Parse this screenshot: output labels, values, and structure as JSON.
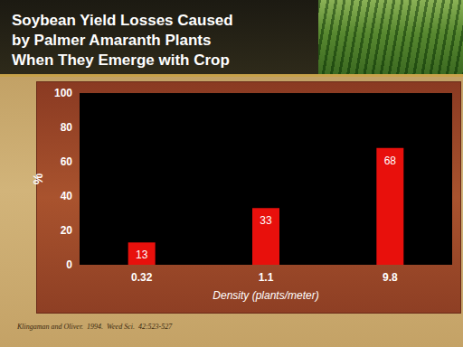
{
  "chart_data": {
    "type": "bar",
    "title": "Soybean Yield Losses Caused\nby Palmer Amaranth Plants\nWhen They Emerge with Crop",
    "xlabel": "Density (plants/meter)",
    "ylabel": "%",
    "categories": [
      "0.32",
      "1.1",
      "9.8"
    ],
    "values": [
      13,
      33,
      68
    ],
    "color": "#e8100c",
    "ylim": [
      0,
      100
    ],
    "yticks": [
      0,
      20,
      40,
      60,
      80,
      100
    ],
    "grid": false,
    "data_labels": true,
    "annotations": [
      "Klingaman and Oliver.  1994.  Weed Sci.  42:523-527"
    ]
  }
}
